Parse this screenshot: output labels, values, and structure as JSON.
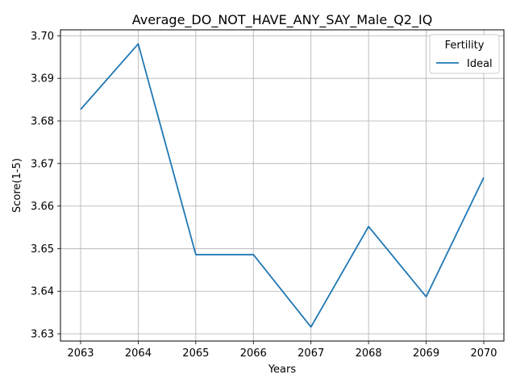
{
  "chart_data": {
    "type": "line",
    "title": "Average_DO_NOT_HAVE_ANY_SAY_Male_Q2_IQ",
    "xlabel": "Years",
    "ylabel": "Score(1-5)",
    "x": [
      2063,
      2064,
      2065,
      2066,
      2067,
      2068,
      2069,
      2070
    ],
    "series": [
      {
        "name": "Ideal",
        "color": "#1f77b4",
        "values": [
          3.6827,
          3.6981,
          3.6486,
          3.6486,
          3.6316,
          3.6552,
          3.6387,
          3.6667
        ]
      }
    ],
    "xticks": [
      "2063",
      "2064",
      "2065",
      "2066",
      "2067",
      "2068",
      "2069",
      "2070"
    ],
    "yticks": [
      "3.63",
      "3.64",
      "3.65",
      "3.66",
      "3.67",
      "3.68",
      "3.69",
      "3.70"
    ],
    "xlim": [
      2062.65,
      2070.35
    ],
    "ylim": [
      3.6283,
      3.7014
    ],
    "grid": true,
    "legend": {
      "title": "Fertility",
      "position": "top-right"
    }
  }
}
